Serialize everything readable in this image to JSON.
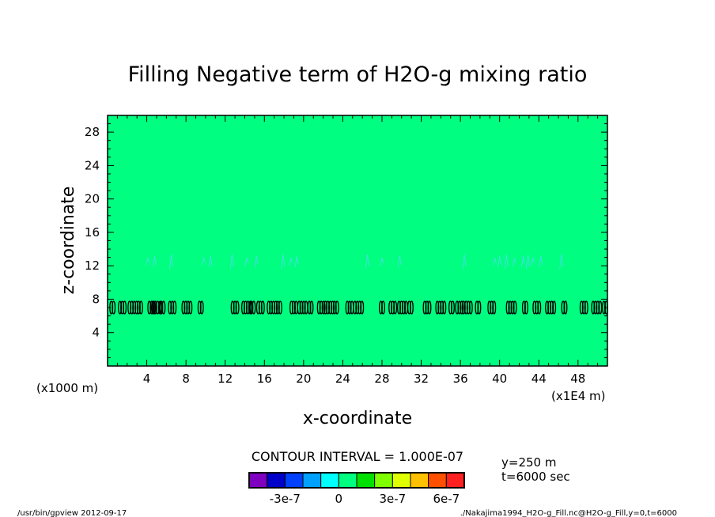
{
  "chart_data": {
    "type": "heatmap",
    "title": "Filling Negative term of H2O-g mixing ratio",
    "xlabel": "x-coordinate",
    "ylabel": "z-coordinate",
    "x_unit": "(x1E4 m)",
    "y_unit": "(x1000 m)",
    "xlim": [
      0,
      51
    ],
    "ylim": [
      0,
      30
    ],
    "x_ticks": [
      4,
      8,
      12,
      16,
      20,
      24,
      28,
      32,
      36,
      40,
      44,
      48
    ],
    "y_ticks": [
      4,
      8,
      12,
      16,
      20,
      24,
      28
    ],
    "background_color": "#00ff80",
    "contour_interval": "CONTOUR INTERVAL = 1.000E-07",
    "annotations": [
      "y=250 m",
      "t=6000 sec"
    ],
    "colorbar": {
      "colors": [
        "#8000c0",
        "#0000c8",
        "#0040ff",
        "#00a0ff",
        "#00ffff",
        "#00ff80",
        "#00e000",
        "#80ff00",
        "#e0ff00",
        "#ffc000",
        "#ff5000",
        "#ff2020"
      ],
      "labels": [
        "-3e-7",
        "0",
        "3e-7",
        "6e-7"
      ],
      "label_positions": [
        -3e-07,
        0,
        3e-07,
        6e-07
      ]
    },
    "negative_blobs_z": 7,
    "negative_blobs_x": [
      0.5,
      1.5,
      2.6,
      3.3,
      4.5,
      5.0,
      5.6,
      6.6,
      8.1,
      9.5,
      13.0,
      14.2,
      14.8,
      15.6,
      16.8,
      17.5,
      19.0,
      19.9,
      20.7,
      21.8,
      22.6,
      23.3,
      24.7,
      25.6,
      28.0,
      29.1,
      30.1,
      30.9,
      32.6,
      34.0,
      35.1,
      35.9,
      36.7,
      37.8,
      39.2,
      41.2,
      42.6,
      43.8,
      45.2,
      46.6,
      48.6,
      49.9,
      51.0
    ],
    "weak_contours_z": 12.5,
    "weak_contours_x": [
      4.1,
      4.8,
      6.5,
      9.8,
      10.5,
      12.7,
      14.2,
      15.2,
      17.9,
      18.7,
      19.3,
      26.5,
      28.0,
      29.8,
      36.4,
      39.5,
      40.0,
      40.7,
      41.5,
      42.4,
      42.9,
      43.4,
      44.2,
      46.3
    ],
    "footer_left": "/usr/bin/gpview   2012-09-17",
    "footer_right": "./Nakajima1994_H2O-g_Fill.nc@H2O-g_Fill,y=0,t=6000"
  }
}
